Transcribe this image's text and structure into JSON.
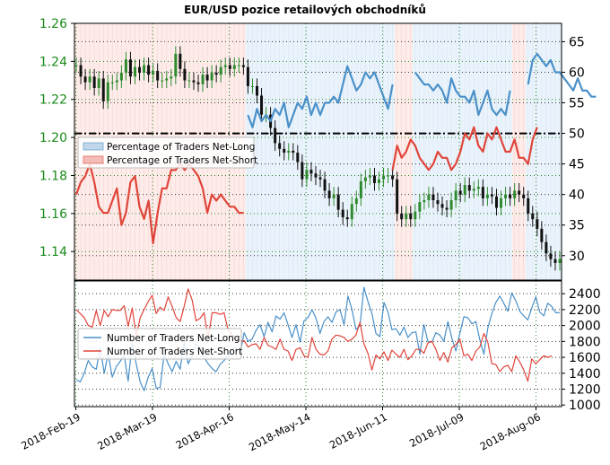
{
  "chart_data": [
    {
      "type": "line",
      "title": "EUR/USD pozice retailových obchodníků",
      "x_ticks": [
        "2018-Feb-19",
        "2018-Mar-19",
        "2018-Apr-16",
        "2018-May-14",
        "2018-Jun-11",
        "2018-Jul-09",
        "2018-Aug-06"
      ],
      "left_axis": {
        "ticks": [
          "1.14",
          "1.16",
          "1.18",
          "1.20",
          "1.22",
          "1.24",
          "1.26"
        ],
        "ylim": [
          1.125,
          1.26
        ],
        "color": "#1a8a1a"
      },
      "right_axis": {
        "ticks": [
          "30",
          "35",
          "40",
          "45",
          "50",
          "55",
          "60",
          "65"
        ],
        "ylim": [
          26,
          68
        ]
      },
      "reference_line": {
        "value": 50,
        "style": "dash-dot"
      },
      "legend": {
        "placement": "center-left",
        "entries": [
          {
            "label": "Percentage of Traders Net-Long",
            "color": "#4a90c8"
          },
          {
            "label": "Percentage of Traders Net-Short",
            "color": "#e0453a"
          }
        ]
      },
      "series": [
        {
          "kind": "price_candles",
          "values": [
            1.238,
            1.232,
            1.229,
            1.232,
            1.226,
            1.231,
            1.219,
            1.229,
            1.229,
            1.23,
            1.234,
            1.241,
            1.232,
            1.237,
            1.234,
            1.238,
            1.233,
            1.235,
            1.23,
            1.23,
            1.231,
            1.232,
            1.244,
            1.236,
            1.23,
            1.23,
            1.229,
            1.228,
            1.233,
            1.23,
            1.234,
            1.233,
            1.237,
            1.238,
            1.236,
            1.238,
            1.238,
            1.237,
            1.227,
            1.227,
            1.222,
            1.212,
            1.212,
            1.205,
            1.197,
            1.194,
            1.192,
            1.193,
            1.192,
            1.187,
            1.178,
            1.183,
            1.181,
            1.179,
            1.178,
            1.172,
            1.168,
            1.17,
            1.162,
            1.158,
            1.157,
            1.165,
            1.168,
            1.177,
            1.179,
            1.18,
            1.176,
            1.178,
            1.18,
            1.18,
            1.178,
            1.16,
            1.157,
            1.16,
            1.157,
            1.161,
            1.166,
            1.167,
            1.17,
            1.167,
            1.165,
            1.163,
            1.162,
            1.167,
            1.172,
            1.17,
            1.175,
            1.172,
            1.173,
            1.174,
            1.168,
            1.17,
            1.169,
            1.163,
            1.168,
            1.17,
            1.168,
            1.172,
            1.17,
            1.168,
            1.16,
            1.157,
            1.152,
            1.145,
            1.139,
            1.136,
            1.134,
            1.136
          ]
        },
        {
          "name": "Percentage of Traders Net-Long",
          "values": [
            null,
            null,
            null,
            null,
            null,
            null,
            null,
            null,
            null,
            null,
            null,
            null,
            null,
            null,
            null,
            null,
            null,
            null,
            null,
            null,
            null,
            null,
            null,
            null,
            null,
            null,
            null,
            null,
            null,
            null,
            null,
            null,
            null,
            null,
            null,
            null,
            null,
            null,
            53,
            51,
            54,
            52,
            53,
            52,
            54,
            53,
            55,
            51,
            53,
            55,
            54,
            56,
            53,
            55,
            53,
            55,
            55,
            56,
            55,
            58,
            61,
            59,
            57,
            58,
            60,
            59,
            60,
            58,
            56,
            54,
            58,
            null,
            null,
            null,
            null,
            60,
            59,
            58,
            58,
            57,
            58,
            57,
            55,
            59,
            57,
            56,
            56,
            55,
            57,
            53,
            55,
            57,
            54,
            53,
            54,
            53,
            57,
            null,
            null,
            null,
            58,
            62,
            63,
            62,
            61,
            62,
            60,
            60,
            59,
            58,
            57,
            59,
            57,
            57,
            56,
            56
          ]
        },
        {
          "name": "Percentage of Traders Net-Short",
          "values": [
            40,
            42,
            43,
            45,
            42,
            38,
            37,
            37,
            39,
            41,
            35,
            37,
            42,
            43,
            38,
            36,
            39,
            32,
            37,
            41,
            41,
            44,
            44,
            45,
            44,
            45,
            44,
            43,
            41,
            37,
            40,
            39,
            40,
            39,
            38,
            38,
            37,
            37,
            null,
            null,
            null,
            null,
            null,
            null,
            null,
            null,
            null,
            null,
            null,
            null,
            null,
            null,
            null,
            null,
            null,
            null,
            null,
            null,
            null,
            null,
            null,
            null,
            null,
            null,
            null,
            null,
            null,
            null,
            null,
            null,
            44,
            48,
            46,
            47,
            49,
            48,
            46,
            45,
            44,
            45,
            47,
            46,
            46,
            44,
            45,
            47,
            50,
            49,
            51,
            48,
            47,
            50,
            49,
            51,
            49,
            47,
            47,
            49,
            46,
            46,
            45,
            49,
            51,
            null,
            null,
            null,
            null,
            null,
            null,
            null,
            null,
            null,
            null,
            null,
            null,
            null,
            null,
            null,
            null,
            null
          ]
        }
      ]
    },
    {
      "type": "line",
      "y_ticks": [
        "1000",
        "1200",
        "1400",
        "1600",
        "1800",
        "2000",
        "2200",
        "2400"
      ],
      "ylim": [
        980,
        2560
      ],
      "legend": {
        "placement": "center-left",
        "entries": [
          {
            "label": "Number of Traders Net-Long",
            "color": "#4a90c8"
          },
          {
            "label": "Number of Traders Net-Short",
            "color": "#e0453a"
          }
        ]
      },
      "series": [
        {
          "name": "Number of Traders Net-Long",
          "values": [
            1320,
            1290,
            1400,
            1560,
            1480,
            1450,
            1720,
            1400,
            1650,
            1350,
            1480,
            1550,
            1620,
            1300,
            1780,
            1520,
            1290,
            1180,
            1350,
            1460,
            1210,
            1220,
            1640,
            1520,
            1420,
            1550,
            1450,
            1800,
            1520,
            1620,
            1770,
            1720,
            1600,
            1520,
            1460,
            1420,
            1510,
            1560,
            1620,
            1700,
            1720,
            1640,
            1910,
            1800,
            1830,
            1940,
            2010,
            1860,
            2040,
            1920,
            2120,
            2080,
            2160,
            2010,
            1850,
            2010,
            1790,
            2060,
            2100,
            2200,
            2090,
            1900,
            2050,
            2110,
            2040,
            2170,
            2200,
            2010,
            2370,
            2200,
            1950,
            2000,
            2480,
            2300,
            2150,
            1900,
            1860,
            2290,
            2170,
            1950,
            1960,
            1880,
            1980,
            1850,
            1910,
            1920,
            1640,
            2010,
            1800,
            1790,
            1910,
            1880,
            1800,
            2050,
            1840,
            1680,
            1900,
            2110,
            2100,
            2020,
            2050,
            1820,
            1640,
            1970,
            2150,
            2290,
            2370,
            2280,
            2180,
            2410,
            2310,
            2180,
            2120,
            2070,
            2220,
            2360,
            2170,
            2120,
            2280,
            2240,
            2160,
            2160
          ]
        },
        {
          "name": "Number of Traders Net-Short",
          "values": [
            2200,
            2150,
            2100,
            2000,
            1980,
            2190,
            2000,
            2190,
            2110,
            2200,
            2190,
            2190,
            2250,
            1990,
            2220,
            1870,
            2100,
            2200,
            2300,
            2380,
            2150,
            2230,
            2190,
            2360,
            2240,
            2100,
            2050,
            2240,
            2460,
            2320,
            2060,
            2090,
            2160,
            1840,
            2160,
            2160,
            2140,
            2160,
            1940,
            1890,
            1840,
            1800,
            1810,
            1730,
            1760,
            1770,
            1700,
            1850,
            1750,
            1730,
            1700,
            1830,
            1700,
            1680,
            1560,
            1700,
            1720,
            1620,
            1600,
            1850,
            1700,
            1640,
            1630,
            1680,
            1830,
            1880,
            1870,
            1850,
            1800,
            1830,
            1880,
            2040,
            1770,
            1650,
            1440,
            1630,
            1580,
            1670,
            1560,
            1690,
            1640,
            1600,
            1700,
            1570,
            1620,
            1700,
            1700,
            1650,
            1780,
            1800,
            1700,
            1560,
            1660,
            1540,
            1720,
            1760,
            1830,
            1620,
            1640,
            1560,
            1680,
            1730,
            1900,
            1790,
            1520,
            1510,
            1420,
            1480,
            1500,
            1420,
            1620,
            1540,
            1440,
            1300,
            1580,
            1520,
            1570,
            1620,
            1600,
            1620
          ]
        }
      ]
    }
  ]
}
